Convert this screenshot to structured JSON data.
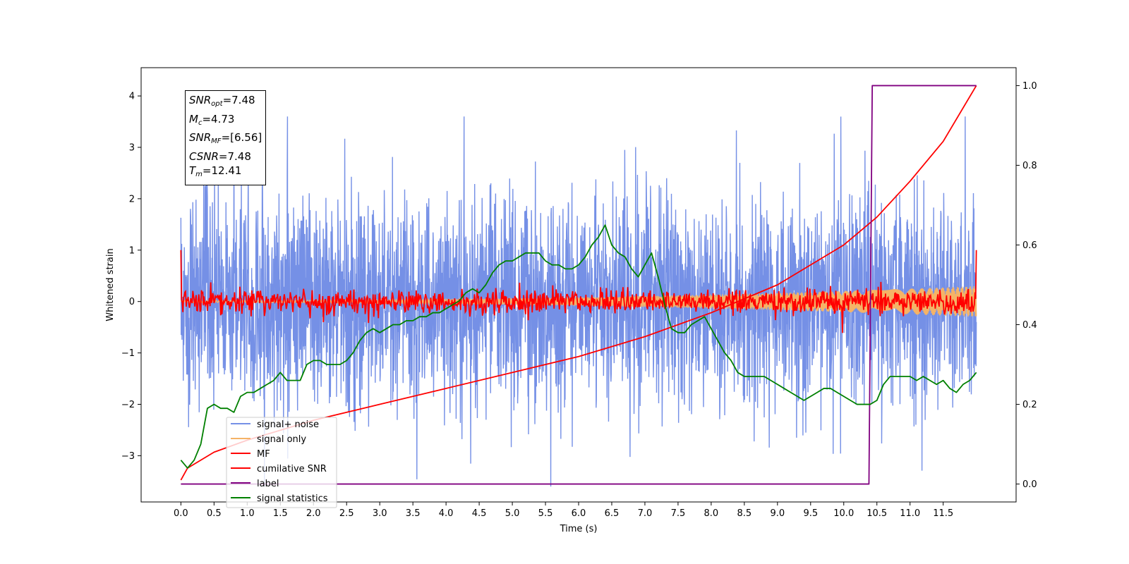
{
  "chart_data": {
    "type": "line",
    "xlabel": "Time (s)",
    "ylabel": "Whitened strain",
    "xlim": [
      -0.6,
      12.6
    ],
    "ylim": [
      -3.9,
      4.55
    ],
    "y2lim": [
      -0.045,
      1.045
    ],
    "x_ticks": [
      "0.0",
      "0.5",
      "1.0",
      "1.5",
      "2.0",
      "2.5",
      "3.0",
      "3.5",
      "4.0",
      "4.5",
      "5.0",
      "5.5",
      "6.0",
      "6.5",
      "7.0",
      "7.5",
      "8.0",
      "8.5",
      "9.0",
      "9.5",
      "10.0",
      "10.5",
      "11.0",
      "11.5"
    ],
    "y_ticks": [
      "4",
      "3",
      "2",
      "1",
      "0",
      "−1",
      "−2",
      "−3"
    ],
    "y2_ticks": [
      "1.0",
      "0.8",
      "0.6",
      "0.4",
      "0.2",
      "0.0"
    ],
    "grid": false,
    "legend_position": "lower-left",
    "annotation": {
      "snr_opt": {
        "base": "SNR",
        "sub": "opt",
        "value": "=7.48"
      },
      "mc": {
        "base": "M",
        "sub": "c",
        "value": "=4.73"
      },
      "snr_mf": {
        "base": "SNR",
        "sub": "MF",
        "value": "=[6.56]"
      },
      "csnr": {
        "base": "CSNR",
        "value": "=7.48"
      },
      "tm": {
        "base": "T",
        "sub": "m",
        "value": "=12.41"
      }
    },
    "series": [
      {
        "name": "signal+ noise",
        "color": "#7590e6",
        "axis": "left",
        "style": "random noise, approx. amplitude ±2.5 with peaks near ±3.5",
        "x_range": [
          0,
          12.0
        ]
      },
      {
        "name": "signal only",
        "color": "#f5b366",
        "axis": "left",
        "style": "chirp oscillation, amplitude growing from ~0.02 to ~0.3",
        "x_range": [
          0,
          12.0
        ]
      },
      {
        "name": "MF",
        "color": "#ff0000",
        "axis": "left",
        "style": "noisy trace around 0, amplitude ~0.2, spikes to 1.0 at both ends",
        "x_range": [
          0,
          12.0
        ]
      },
      {
        "name": "cumilative SNR",
        "color": "#ff0000",
        "axis": "right",
        "x": [
          0,
          0.1,
          0.5,
          1,
          2,
          3,
          4,
          5,
          6,
          7,
          8,
          9,
          9.5,
          10,
          10.5,
          11,
          11.5,
          12.0
        ],
        "values": [
          0.01,
          0.04,
          0.08,
          0.11,
          0.16,
          0.2,
          0.24,
          0.28,
          0.32,
          0.37,
          0.43,
          0.5,
          0.55,
          0.6,
          0.67,
          0.76,
          0.86,
          1.0
        ]
      },
      {
        "name": "label",
        "color": "#800080",
        "axis": "right",
        "x": [
          0,
          10.38,
          10.43,
          12.0
        ],
        "values": [
          0.0,
          0.0,
          1.0,
          1.0
        ]
      },
      {
        "name": "signal statistics",
        "color": "#008000",
        "axis": "right",
        "x": [
          0,
          0.1,
          0.2,
          0.3,
          0.4,
          0.5,
          0.6,
          0.7,
          0.8,
          0.9,
          1.0,
          1.1,
          1.2,
          1.3,
          1.4,
          1.5,
          1.6,
          1.7,
          1.8,
          1.9,
          2.0,
          2.1,
          2.2,
          2.3,
          2.4,
          2.5,
          2.6,
          2.7,
          2.8,
          2.9,
          3.0,
          3.1,
          3.2,
          3.3,
          3.4,
          3.5,
          3.6,
          3.7,
          3.8,
          3.9,
          4.0,
          4.1,
          4.2,
          4.3,
          4.4,
          4.5,
          4.6,
          4.7,
          4.8,
          4.9,
          5.0,
          5.1,
          5.2,
          5.3,
          5.4,
          5.5,
          5.6,
          5.7,
          5.8,
          5.9,
          6.0,
          6.1,
          6.2,
          6.3,
          6.4,
          6.5,
          6.6,
          6.7,
          6.8,
          6.9,
          7.0,
          7.1,
          7.2,
          7.3,
          7.4,
          7.5,
          7.6,
          7.7,
          7.8,
          7.9,
          8.0,
          8.1,
          8.2,
          8.3,
          8.4,
          8.5,
          8.6,
          8.7,
          8.8,
          8.9,
          9.0,
          9.1,
          9.2,
          9.3,
          9.4,
          9.5,
          9.6,
          9.7,
          9.8,
          9.9,
          10.0,
          10.1,
          10.2,
          10.3,
          10.4,
          10.5,
          10.6,
          10.7,
          10.8,
          10.9,
          11.0,
          11.1,
          11.2,
          11.3,
          11.4,
          11.5,
          11.6,
          11.7,
          11.8,
          11.9,
          12.0
        ],
        "values": [
          0.06,
          0.04,
          0.06,
          0.1,
          0.19,
          0.2,
          0.19,
          0.19,
          0.18,
          0.22,
          0.23,
          0.23,
          0.24,
          0.25,
          0.26,
          0.28,
          0.26,
          0.26,
          0.26,
          0.3,
          0.31,
          0.31,
          0.3,
          0.3,
          0.3,
          0.31,
          0.33,
          0.36,
          0.38,
          0.39,
          0.38,
          0.39,
          0.4,
          0.4,
          0.41,
          0.41,
          0.42,
          0.42,
          0.43,
          0.43,
          0.44,
          0.45,
          0.46,
          0.48,
          0.49,
          0.48,
          0.5,
          0.53,
          0.55,
          0.56,
          0.56,
          0.57,
          0.58,
          0.58,
          0.58,
          0.56,
          0.55,
          0.55,
          0.54,
          0.54,
          0.55,
          0.57,
          0.6,
          0.62,
          0.65,
          0.6,
          0.58,
          0.57,
          0.54,
          0.52,
          0.55,
          0.58,
          0.52,
          0.45,
          0.39,
          0.38,
          0.38,
          0.4,
          0.41,
          0.42,
          0.39,
          0.36,
          0.33,
          0.31,
          0.28,
          0.27,
          0.27,
          0.27,
          0.27,
          0.26,
          0.25,
          0.24,
          0.23,
          0.22,
          0.21,
          0.22,
          0.23,
          0.24,
          0.24,
          0.23,
          0.22,
          0.21,
          0.2,
          0.2,
          0.2,
          0.21,
          0.25,
          0.27,
          0.27,
          0.27,
          0.27,
          0.26,
          0.27,
          0.26,
          0.25,
          0.26,
          0.24,
          0.23,
          0.25,
          0.26,
          0.28
        ]
      }
    ]
  }
}
